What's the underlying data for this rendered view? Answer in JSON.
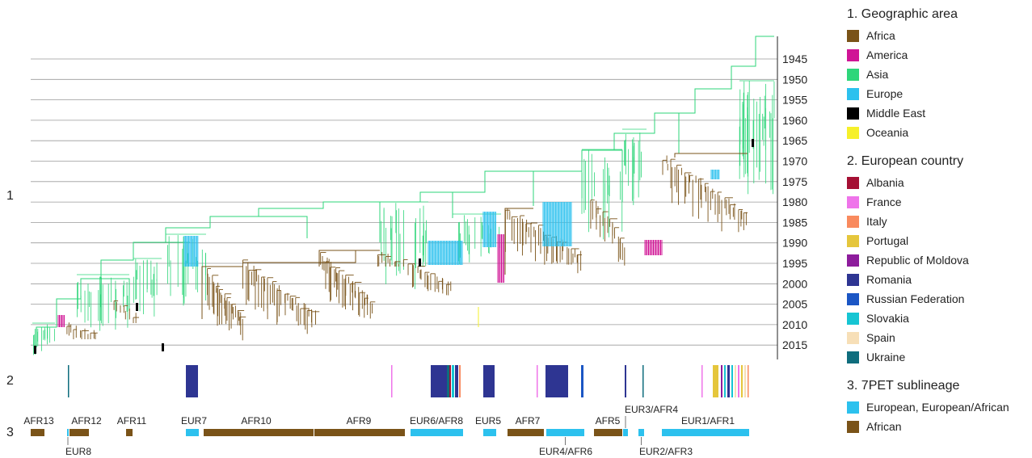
{
  "panel_labels": [
    "1",
    "2",
    "3"
  ],
  "years": [
    "1945",
    "1950",
    "1955",
    "1960",
    "1965",
    "1970",
    "1975",
    "1980",
    "1985",
    "1990",
    "1995",
    "2000",
    "2005",
    "2010",
    "2015"
  ],
  "sublineages": [
    {
      "label": "AFR13",
      "group": "African"
    },
    {
      "label": "EUR8",
      "group": "European, European/African"
    },
    {
      "label": "AFR12",
      "group": "African"
    },
    {
      "label": "AFR11",
      "group": "African"
    },
    {
      "label": "EUR7",
      "group": "European, European/African"
    },
    {
      "label": "AFR10",
      "group": "African"
    },
    {
      "label": "AFR9",
      "group": "African"
    },
    {
      "label": "EUR6/AFR8",
      "group": "European, European/African"
    },
    {
      "label": "EUR5",
      "group": "European, European/African"
    },
    {
      "label": "AFR7",
      "group": "African"
    },
    {
      "label": "EUR4/AFR6",
      "group": "European, European/African"
    },
    {
      "label": "AFR5",
      "group": "African"
    },
    {
      "label": "EUR3/AFR4",
      "group": "European, European/African"
    },
    {
      "label": "EUR2/AFR3",
      "group": "European, European/African"
    },
    {
      "label": "EUR1/AFR1",
      "group": "European, European/African"
    }
  ],
  "legend": {
    "geo": {
      "title": "1. Geographic area",
      "items": [
        {
          "label": "Africa",
          "color": "#7a5318"
        },
        {
          "label": "America",
          "color": "#d01596"
        },
        {
          "label": "Asia",
          "color": "#2ed67a"
        },
        {
          "label": "Europe",
          "color": "#2cc1ee"
        },
        {
          "label": "Middle East",
          "color": "#000000"
        },
        {
          "label": "Oceania",
          "color": "#f6f02a"
        }
      ]
    },
    "country": {
      "title": "2. European country",
      "items": [
        {
          "label": "Albania",
          "color": "#a51034"
        },
        {
          "label": "France",
          "color": "#ef74ea"
        },
        {
          "label": "Italy",
          "color": "#f98a5e"
        },
        {
          "label": "Portugal",
          "color": "#e5c63c"
        },
        {
          "label": "Republic of Moldova",
          "color": "#8d1c9c"
        },
        {
          "label": "Romania",
          "color": "#2e3592"
        },
        {
          "label": "Russian Federation",
          "color": "#1b56c4"
        },
        {
          "label": "Slovakia",
          "color": "#16c5d3"
        },
        {
          "label": "Spain",
          "color": "#f7dfb7"
        },
        {
          "label": "Ukraine",
          "color": "#0f6d7d"
        }
      ]
    },
    "sub": {
      "title": "3. 7PET sublineage",
      "items": [
        {
          "label": "European, European/African",
          "color": "#2cc1ee"
        },
        {
          "label": "African",
          "color": "#7a5318"
        }
      ]
    }
  }
}
